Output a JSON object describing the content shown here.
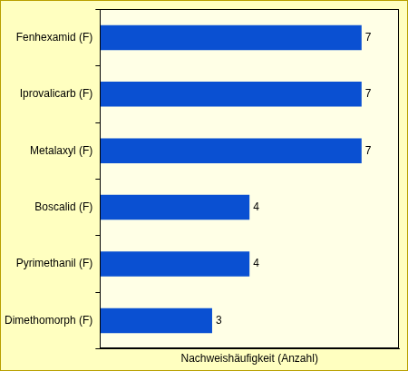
{
  "chart_data": {
    "type": "bar",
    "orientation": "horizontal",
    "x_label": "Nachweishäufigkeit (Anzahl)",
    "categories": [
      "Fenhexamid (F)",
      "Iprovalicarb (F)",
      "Metalaxyl (F)",
      "Boscalid (F)",
      "Pyrimethanil (F)",
      "Dimethomorph (F)"
    ],
    "values": [
      7,
      7,
      7,
      4,
      4,
      3
    ],
    "color": "#0a50d2",
    "xlim": [
      0,
      8
    ],
    "grid": false,
    "data_labels": true,
    "tick_labels": "y"
  }
}
